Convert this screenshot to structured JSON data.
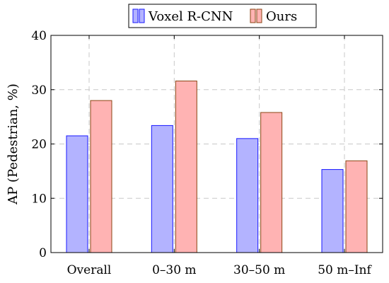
{
  "chart_data": {
    "type": "bar",
    "title": "",
    "xlabel": "",
    "ylabel": "AP (Pedestrian, %)",
    "categories": [
      "Overall",
      "0–30 m",
      "30–50 m",
      "50 m–Inf"
    ],
    "series": [
      {
        "name": "Voxel R-CNN",
        "values": [
          21.5,
          23.4,
          21.0,
          15.3
        ],
        "fill": "#b3b3ff",
        "stroke": "#1a1aff"
      },
      {
        "name": "Ours",
        "values": [
          28.0,
          31.6,
          25.8,
          16.9
        ],
        "fill": "#ffb3b3",
        "stroke": "#8b4513"
      }
    ],
    "ylim": [
      0,
      40
    ],
    "yticks": [
      0,
      10,
      20,
      30,
      40
    ],
    "grid": true,
    "legend_position": "top-center"
  }
}
